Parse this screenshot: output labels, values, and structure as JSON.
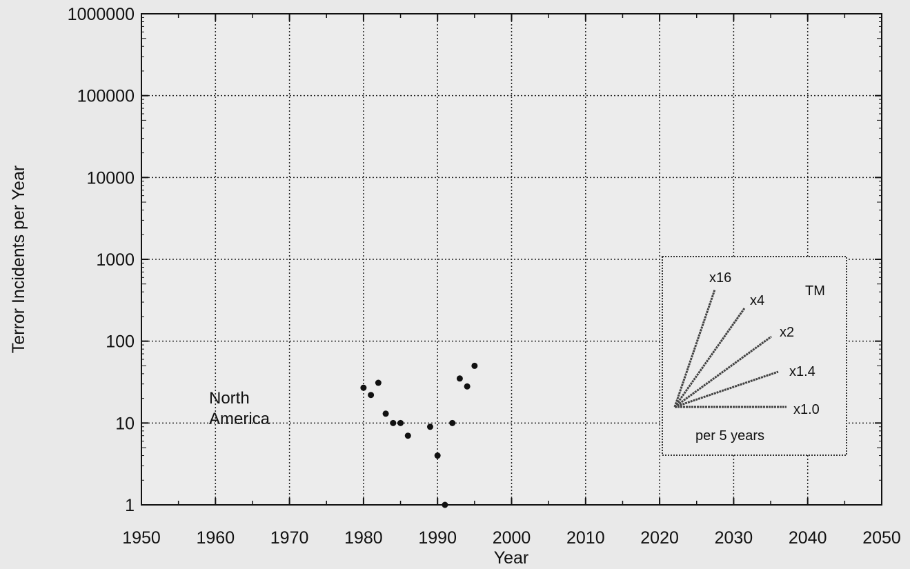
{
  "chart_data": {
    "type": "scatter",
    "title": "",
    "xlabel": "Year",
    "ylabel": "Terror Incidents per Year",
    "xlim": [
      1950,
      2050
    ],
    "ylim": [
      1,
      1000000
    ],
    "y_scale": "log",
    "grid": true,
    "x_ticks": [
      "1950",
      "1960",
      "1970",
      "1980",
      "1990",
      "2000",
      "2010",
      "2020",
      "2030",
      "2040",
      "2050"
    ],
    "y_ticks": [
      "1",
      "10",
      "100",
      "1000",
      "10000",
      "100000",
      "1000000"
    ],
    "series": [
      {
        "name": "North America",
        "color": "#111111",
        "points": [
          {
            "x": 1980,
            "y": 27
          },
          {
            "x": 1981,
            "y": 22
          },
          {
            "x": 1982,
            "y": 31
          },
          {
            "x": 1983,
            "y": 13
          },
          {
            "x": 1984,
            "y": 10
          },
          {
            "x": 1985,
            "y": 10
          },
          {
            "x": 1986,
            "y": 7
          },
          {
            "x": 1989,
            "y": 9
          },
          {
            "x": 1990,
            "y": 4
          },
          {
            "x": 1991,
            "y": 1
          },
          {
            "x": 1992,
            "y": 10
          },
          {
            "x": 1993,
            "y": 35
          },
          {
            "x": 1994,
            "y": 28
          },
          {
            "x": 1995,
            "y": 50
          }
        ]
      }
    ],
    "annotations": [
      {
        "text_lines": [
          "North",
          "America"
        ]
      }
    ],
    "growth_legend": {
      "title": "per 5 years",
      "mark": "TM",
      "rates": [
        "x16",
        "x4",
        "x2",
        "x1.4",
        "x1.0"
      ],
      "placement": "bottom-right"
    }
  }
}
